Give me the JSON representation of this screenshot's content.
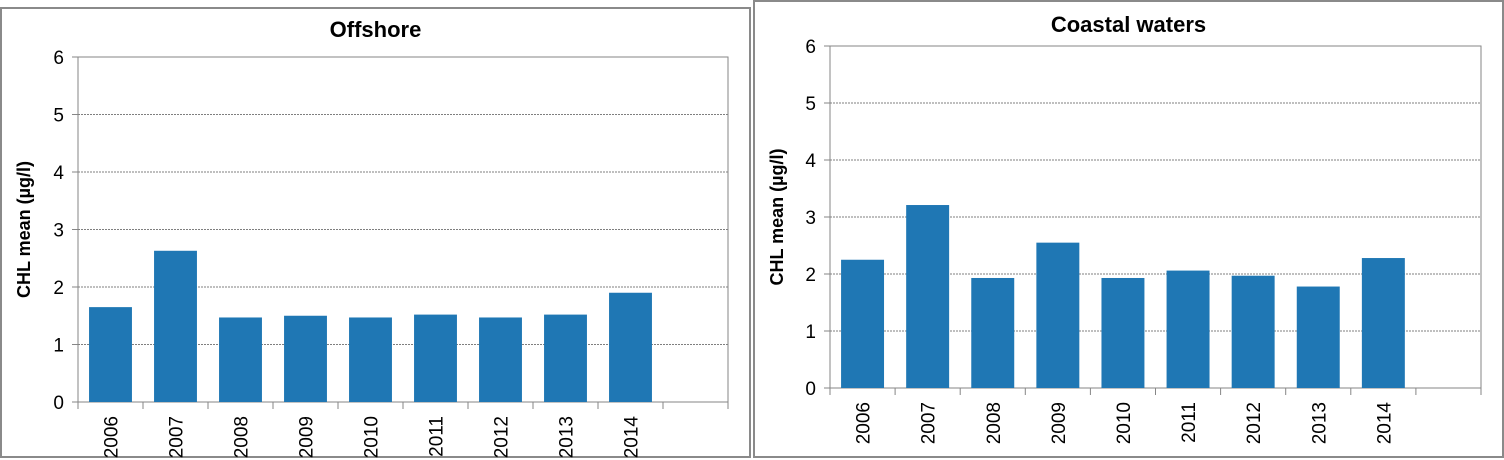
{
  "chart_data": [
    {
      "type": "bar",
      "title": "Offshore",
      "xlabel": "",
      "ylabel": "CHL mean (µg/l)",
      "ylim": [
        0,
        6
      ],
      "yticks": [
        "0",
        "1",
        "2",
        "3",
        "4",
        "5",
        "6"
      ],
      "grid": true,
      "categories": [
        "2006",
        "2007",
        "2008",
        "2009",
        "2010",
        "2011",
        "2012",
        "2013",
        "2014",
        ""
      ],
      "values": [
        1.65,
        2.63,
        1.47,
        1.5,
        1.47,
        1.52,
        1.47,
        1.52,
        1.9,
        null
      ],
      "color": "#1f77b4"
    },
    {
      "type": "bar",
      "title": "Coastal waters",
      "xlabel": "",
      "ylabel": "CHL mean (µg/l)",
      "ylim": [
        0,
        6
      ],
      "yticks": [
        "0",
        "1",
        "2",
        "3",
        "4",
        "5",
        "6"
      ],
      "grid": true,
      "categories": [
        "2006",
        "2007",
        "2008",
        "2009",
        "2010",
        "2011",
        "2012",
        "2013",
        "2014",
        ""
      ],
      "values": [
        2.25,
        3.21,
        1.93,
        2.55,
        1.93,
        2.06,
        1.97,
        1.78,
        2.28,
        null
      ],
      "color": "#1f77b4"
    }
  ]
}
